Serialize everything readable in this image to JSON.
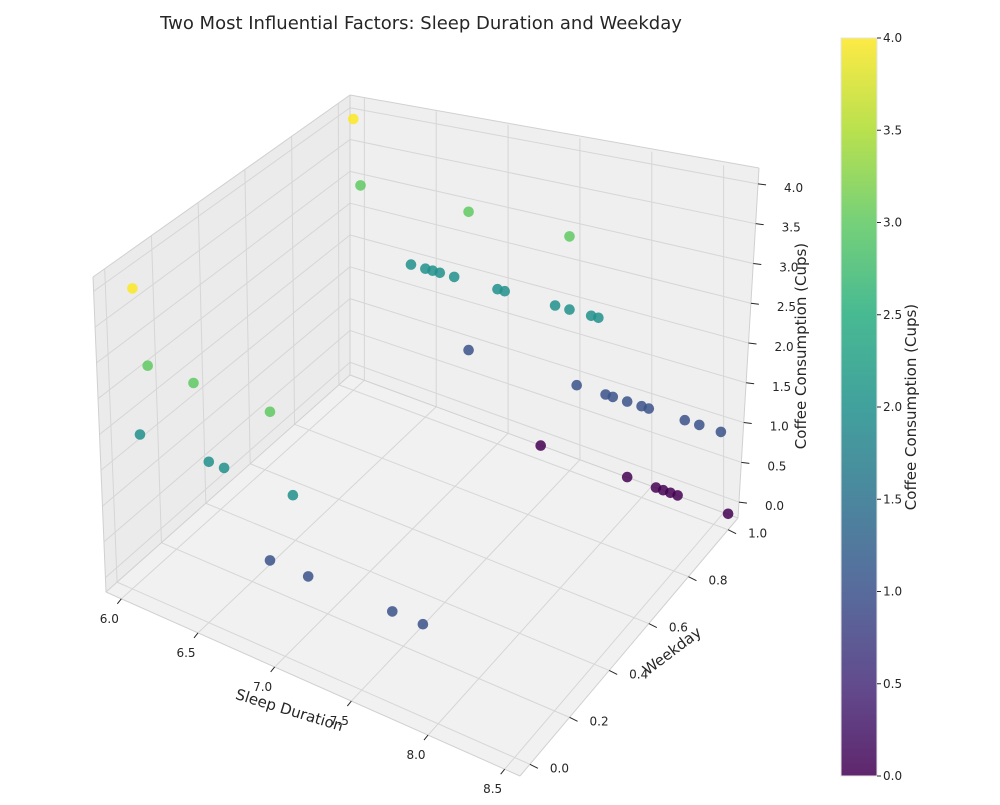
{
  "chart_data": {
    "type": "scatter",
    "projection": "3d",
    "title": "Two Most Influential Factors: Sleep Duration and Weekday",
    "xlabel": "Sleep Duration",
    "ylabel": "Weekday",
    "zlabel": "Coffee Consumption (Cups)",
    "xlim": [
      5.9,
      8.6
    ],
    "ylim": [
      -0.05,
      1.05
    ],
    "zlim": [
      -0.2,
      4.2
    ],
    "x_ticks": [
      "6.0",
      "6.5",
      "7.0",
      "7.5",
      "8.0",
      "8.5"
    ],
    "y_ticks": [
      "0.0",
      "0.2",
      "0.4",
      "0.6",
      "0.8",
      "1.0"
    ],
    "z_ticks": [
      "0.0",
      "0.5",
      "1.0",
      "1.5",
      "2.0",
      "2.5",
      "3.0",
      "3.5",
      "4.0"
    ],
    "grid": true,
    "colormap": "viridis",
    "colorbar": {
      "label": "Coffee Consumption (Cups)",
      "range": [
        0,
        4
      ],
      "ticks": [
        "0.0",
        "0.5",
        "1.0",
        "1.5",
        "2.0",
        "2.5",
        "3.0",
        "3.5",
        "4.0"
      ]
    },
    "points": [
      {
        "x": 6.0,
        "y": 0,
        "z": 4
      },
      {
        "x": 6.1,
        "y": 0,
        "z": 3
      },
      {
        "x": 6.4,
        "y": 0,
        "z": 3
      },
      {
        "x": 6.9,
        "y": 0,
        "z": 3
      },
      {
        "x": 6.05,
        "y": 0,
        "z": 2
      },
      {
        "x": 6.5,
        "y": 0,
        "z": 2
      },
      {
        "x": 6.6,
        "y": 0,
        "z": 2
      },
      {
        "x": 7.05,
        "y": 0,
        "z": 2
      },
      {
        "x": 6.9,
        "y": 0,
        "z": 1
      },
      {
        "x": 7.15,
        "y": 0,
        "z": 1
      },
      {
        "x": 7.7,
        "y": 0,
        "z": 1
      },
      {
        "x": 7.9,
        "y": 0,
        "z": 1
      },
      {
        "x": 6.0,
        "y": 1,
        "z": 4
      },
      {
        "x": 6.05,
        "y": 1,
        "z": 3
      },
      {
        "x": 6.8,
        "y": 1,
        "z": 3
      },
      {
        "x": 7.5,
        "y": 1,
        "z": 3
      },
      {
        "x": 6.4,
        "y": 1,
        "z": 2
      },
      {
        "x": 6.5,
        "y": 1,
        "z": 2
      },
      {
        "x": 6.55,
        "y": 1,
        "z": 2
      },
      {
        "x": 6.6,
        "y": 1,
        "z": 2
      },
      {
        "x": 6.7,
        "y": 1,
        "z": 2
      },
      {
        "x": 7.0,
        "y": 1,
        "z": 2
      },
      {
        "x": 7.05,
        "y": 1,
        "z": 2
      },
      {
        "x": 7.4,
        "y": 1,
        "z": 2
      },
      {
        "x": 7.5,
        "y": 1,
        "z": 2
      },
      {
        "x": 7.65,
        "y": 1,
        "z": 2
      },
      {
        "x": 7.7,
        "y": 1,
        "z": 2
      },
      {
        "x": 6.8,
        "y": 1,
        "z": 1
      },
      {
        "x": 7.55,
        "y": 1,
        "z": 1
      },
      {
        "x": 7.75,
        "y": 1,
        "z": 1
      },
      {
        "x": 7.8,
        "y": 1,
        "z": 1
      },
      {
        "x": 7.9,
        "y": 1,
        "z": 1
      },
      {
        "x": 8.0,
        "y": 1,
        "z": 1
      },
      {
        "x": 8.05,
        "y": 1,
        "z": 1
      },
      {
        "x": 8.3,
        "y": 1,
        "z": 1
      },
      {
        "x": 8.4,
        "y": 1,
        "z": 1
      },
      {
        "x": 8.55,
        "y": 1,
        "z": 1
      },
      {
        "x": 7.3,
        "y": 1,
        "z": 0
      },
      {
        "x": 7.9,
        "y": 1,
        "z": 0
      },
      {
        "x": 8.1,
        "y": 1,
        "z": 0
      },
      {
        "x": 8.15,
        "y": 1,
        "z": 0
      },
      {
        "x": 8.2,
        "y": 1,
        "z": 0
      },
      {
        "x": 8.25,
        "y": 1,
        "z": 0
      },
      {
        "x": 8.6,
        "y": 1,
        "z": 0
      }
    ]
  }
}
